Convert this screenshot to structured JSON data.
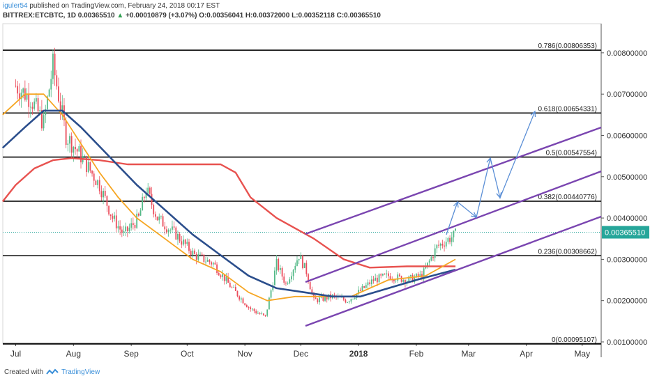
{
  "header": {
    "author": "iguler54",
    "published": "published on TradingView.com, February 24, 2018 00:17 EST",
    "symbol": "BITTREX:ETCBTC, 1D",
    "last": "0.00365510",
    "arrow": "▲",
    "change": "+0.00010879 (+3.07%)",
    "open": "O:0.00356041",
    "high": "H:0.00372000",
    "low": "L:0.00352118",
    "close": "C:0.00365510"
  },
  "footer": {
    "created_with": "Created with",
    "brand": "TradingView",
    "logo_icon": "tradingview-logo-icon"
  },
  "chart_data": {
    "type": "candlestick",
    "y_axis_ticks": [
      "0.00800000",
      "0.00700000",
      "0.00600000",
      "0.00500000",
      "0.00400000",
      "0.00300000",
      "0.00200000",
      "0.00100000"
    ],
    "x_axis_ticks": [
      "Jul",
      "Aug",
      "Sep",
      "Oct",
      "Nov",
      "Dec",
      "2018",
      "Feb",
      "Mar",
      "Apr",
      "May"
    ],
    "current_price": "0.00365510",
    "current_price_value": 0.0036551,
    "fib_levels": [
      {
        "label": "0.786(0.00806353)",
        "value": 0.00806353
      },
      {
        "label": "0.618(0.00654331)",
        "value": 0.00654331
      },
      {
        "label": "0.5(0.00547554)",
        "value": 0.00547554
      },
      {
        "label": "0.382(0.00440776)",
        "value": 0.00440776
      },
      {
        "label": "0.236(0.00308662)",
        "value": 0.00308662
      },
      {
        "label": "0(0.00095107)",
        "value": 0.00095107
      }
    ],
    "colors": {
      "up": "#53b987",
      "down": "#eb4d5c",
      "ma_red": "#e8524f",
      "ma_orange": "#f6a623",
      "ma_navy": "#2b4e8c",
      "channel": "#7a45b0",
      "projection": "#5b8fd6",
      "fib": "#000000",
      "price_label": "#26a69a"
    }
  }
}
